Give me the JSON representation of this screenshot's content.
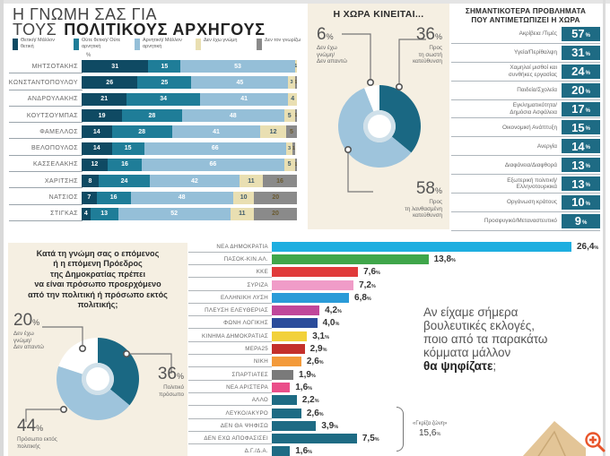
{
  "leaders_panel": {
    "title_line1": "Η ΓΝΩΜΗ ΣΑΣ ΓΙΑ",
    "title_line2_plain": "ΤΟΥΣ",
    "title_line2_bold": "ΠΟΛΙΤΙΚΟΥΣ ΑΡΧΗΓΟΥΣ",
    "percent_mark": "%",
    "legend": [
      {
        "label": "Θετική/ Μάλλον θετική",
        "color": "#0f4a63"
      },
      {
        "label": "Ούτε θετική/ Ούτε αρνητική",
        "color": "#1f7d98"
      },
      {
        "label": "Αρνητική/ Μάλλον αρνητική",
        "color": "#95bfd8"
      },
      {
        "label": "Δεν έχω γνώμη",
        "color": "#e9dfb2"
      },
      {
        "label": "Δεν τον γνωρίζω",
        "color": "#8a8a8a"
      }
    ]
  },
  "direction_panel": {
    "title": "Η ΧΩΡΑ ΚΙΝΕΙΤΑΙ...",
    "right": {
      "value": "36",
      "label_l1": "Προς",
      "label_l2": "τη σωστή",
      "label_l3": "κατεύθυνση"
    },
    "wrong": {
      "value": "58",
      "label_l1": "Προς",
      "label_l2": "τη λανθασμένη",
      "label_l3": "κατεύθυνση"
    },
    "dk": {
      "value": "6",
      "label_l1": "Δεν έχω",
      "label_l2": "γνώμη/",
      "label_l3": "Δεν απαντώ"
    },
    "percent_sign": "%"
  },
  "problems_panel": {
    "title_l1": "ΣΗΜΑΝΤΙΚΟΤΕΡΑ ΠΡΟΒΛΗΜΑΤΑ",
    "title_l2": "ΠΟΥ ΑΝΤΙΜΕΤΩΠΙΖΕΙ Η ΧΩΡΑ",
    "percent_sign": "%"
  },
  "president_panel": {
    "question_l1": "Κατά τη γνώμη σας ο επόμενος",
    "question_l2": "ή η επόμενη Πρόεδρος",
    "question_l3": "της Δημοκρατίας πρέπει",
    "question_l4": "να είναι πρόσωπο προερχόμενο",
    "question_l5": "από την πολιτική ή πρόσωπο εκτός",
    "question_l6": "πολιτικής;",
    "political": {
      "value": "36",
      "label_l1": "Πολιτικό",
      "label_l2": "πρόσωπο"
    },
    "outside": {
      "value": "44",
      "label_l1": "Πρόσωπο εκτός",
      "label_l2": "πολιτικής"
    },
    "dk": {
      "value": "20",
      "label_l1": "Δεν έχω",
      "label_l2": "γνώμη/",
      "label_l3": "Δεν απαντώ"
    },
    "percent_sign": "%"
  },
  "parties_panel": {
    "question_l1": "Αν είχαμε σήμερα",
    "question_l2": "βουλευτικές εκλογές,",
    "question_l3": "ποιο από τα παρακάτω",
    "question_l4": "κόμματα μάλλον",
    "question_bold": "θα ψηφίζατε",
    "question_end": ";",
    "grey_zone_label": "«Γκρίζα ζώνη»",
    "grey_zone_value": "15,6",
    "percent_sign": "%"
  },
  "chart_data": [
    {
      "type": "bar",
      "orientation": "horizontal",
      "stacked": true,
      "title": "Η ΓΝΩΜΗ ΣΑΣ ΓΙΑ ΤΟΥΣ ΠΟΛΙΤΙΚΟΥΣ ΑΡΧΗΓΟΥΣ",
      "unit": "%",
      "categories": [
        "ΜΗΤΣΟΤΑΚΗΣ",
        "ΚΩΝΣΤΑΝΤΟΠΟΥΛΟΥ",
        "ΑΝΔΡΟΥΛΑΚΗΣ",
        "ΚΟΥΤΣΟΥΜΠΑΣ",
        "ΦΑΜΕΛΛΟΣ",
        "ΒΕΛΟΠΟΥΛΟΣ",
        "ΚΑΣΣΕΛΑΚΗΣ",
        "ΧΑΡΙΤΣΗΣ",
        "ΝΑΤΣΙΟΣ",
        "ΣΤΙΓΚΑΣ"
      ],
      "series": [
        {
          "name": "Θετική/Μάλλον θετική",
          "color": "#0f4a63",
          "values": [
            31,
            26,
            21,
            19,
            14,
            14,
            12,
            8,
            7,
            4
          ]
        },
        {
          "name": "Ούτε θετική/Ούτε αρνητική",
          "color": "#1f7d98",
          "values": [
            15,
            25,
            34,
            28,
            28,
            15,
            16,
            24,
            16,
            13
          ]
        },
        {
          "name": "Αρνητική/Μάλλον αρνητική",
          "color": "#95bfd8",
          "values": [
            53,
            45,
            41,
            48,
            41,
            66,
            66,
            42,
            48,
            52
          ]
        },
        {
          "name": "Δεν έχω γνώμη",
          "color": "#e9dfb2",
          "values": [
            1,
            3,
            4,
            5,
            12,
            3,
            5,
            11,
            10,
            11
          ]
        },
        {
          "name": "Δεν τον γνωρίζω",
          "color": "#8a8a8a",
          "values": [
            0,
            1,
            0,
            1,
            5,
            1,
            1,
            16,
            20,
            20
          ]
        }
      ]
    },
    {
      "type": "pie",
      "donut": true,
      "title": "Η ΧΩΡΑ ΚΙΝΕΙΤΑΙ...",
      "categories": [
        "Προς τη σωστή κατεύθυνση",
        "Προς τη λανθασμένη κατεύθυνση",
        "Δεν έχω γνώμη/Δεν απαντώ"
      ],
      "values": [
        36,
        58,
        6
      ],
      "colors": [
        "#1a6883",
        "#9ec4dc",
        "#ffffff"
      ]
    },
    {
      "type": "table",
      "title": "ΣΗΜΑΝΤΙΚΟΤΕΡΑ ΠΡΟΒΛΗΜΑΤΑ ΠΟΥ ΑΝΤΙΜΕΤΩΠΙΖΕΙ Η ΧΩΡΑ",
      "unit": "%",
      "rows": [
        {
          "label_l1": "Ακρίβεια /Τιμές",
          "label_l2": "",
          "value": 57
        },
        {
          "label_l1": "Υγεία/Περίθαλψη",
          "label_l2": "",
          "value": 31
        },
        {
          "label_l1": "Χαμηλοί μισθοί και",
          "label_l2": "συνθήκες εργασίας",
          "value": 24
        },
        {
          "label_l1": "Παιδεία/Σχολεία",
          "label_l2": "",
          "value": 20
        },
        {
          "label_l1": "Εγκληματικότητα/",
          "label_l2": "Δημόσια Ασφάλεια",
          "value": 17
        },
        {
          "label_l1": "Οικονομική Ανάπτυξη",
          "label_l2": "",
          "value": 15
        },
        {
          "label_l1": "Ανεργία",
          "label_l2": "",
          "value": 14
        },
        {
          "label_l1": "Διαφάνεια/Διαφθορά",
          "label_l2": "",
          "value": 13
        },
        {
          "label_l1": "Εξωτερική πολιτική/",
          "label_l2": "Ελληνοτουρκικά",
          "value": 13
        },
        {
          "label_l1": "Οργάνωση κράτους",
          "label_l2": "",
          "value": 10
        },
        {
          "label_l1": "Προσφυγικό/Μεταναστευτικό",
          "label_l2": "",
          "value": 9
        }
      ]
    },
    {
      "type": "pie",
      "donut": true,
      "title": "Κατά τη γνώμη σας ο επόμενος ή η επόμενη Πρόεδρος της Δημοκρατίας πρέπει να είναι πρόσωπο προερχόμενο από την πολιτική ή πρόσωπο εκτός πολιτικής;",
      "categories": [
        "Πολιτικό πρόσωπο",
        "Πρόσωπο εκτός πολιτικής",
        "Δεν έχω γνώμη/Δεν απαντώ"
      ],
      "values": [
        36,
        44,
        20
      ],
      "colors": [
        "#1a6883",
        "#9ec4dc",
        "#ffffff"
      ]
    },
    {
      "type": "bar",
      "orientation": "horizontal",
      "title": "Αν είχαμε σήμερα βουλευτικές εκλογές, ποιο από τα παρακάτω κόμματα μάλλον θα ψηφίζατε;",
      "unit": "%",
      "categories": [
        "ΝΕΑ ΔΗΜΟΚΡΑΤΙΑ",
        "ΠΑΣΟΚ-ΚΙΝ.ΑΛ.",
        "ΚΚΕ",
        "ΣΥΡΙΖΑ",
        "ΕΛΛΗΝΙΚΗ ΛΥΣΗ",
        "ΠΛΕΥΣΗ ΕΛΕΥΘΕΡΙΑΣ",
        "ΦΩΝΗ ΛΟΓΙΚΗΣ",
        "ΚΙΝΗΜΑ ΔΗΜΟΚΡΑΤΙΑΣ",
        "ΜΕΡΑ25",
        "ΝΙΚΗ",
        "ΣΠΑΡΤΙΑΤΕΣ",
        "ΝΕΑ ΑΡΙΣΤΕΡΑ",
        "ΑΛΛΟ",
        "ΛΕΥΚΟ/ΑΚΥΡΟ",
        "ΔΕΝ ΘΑ ΨΗΦΙΣΩ",
        "ΔΕΝ ΕΧΩ ΑΠΟΦΑΣΙΣΕΙ",
        "Δ.Γ./Δ.Α."
      ],
      "values": [
        26.4,
        13.8,
        7.6,
        7.2,
        6.8,
        4.2,
        4.0,
        3.1,
        2.9,
        2.6,
        1.9,
        1.6,
        2.2,
        2.6,
        3.9,
        7.5,
        1.6
      ],
      "labels": [
        "26,4",
        "13,8",
        "7,6",
        "7,2",
        "6,8",
        "4,2",
        "4,0",
        "3,1",
        "2,9",
        "2,6",
        "1,9",
        "1,6",
        "2,2",
        "2,6",
        "3,9",
        "7,5",
        "1,6"
      ],
      "colors": [
        "#1eaee0",
        "#3fa64a",
        "#e03a3a",
        "#f09cc8",
        "#2a9bd8",
        "#c0479a",
        "#2b4c9b",
        "#f2d13a",
        "#c4302b",
        "#f39a3a",
        "#7a7a7a",
        "#ea4f8a",
        "#1e6b84",
        "#1e6b84",
        "#1e6b84",
        "#1e6b84",
        "#1e6b84"
      ],
      "annotations": [
        {
          "text": "«Γκρίζα ζώνη» 15,6%",
          "covers": [
            "ΛΕΥΚΟ/ΑΚΥΡΟ",
            "ΔΕΝ ΘΑ ΨΗΦΙΣΩ",
            "ΔΕΝ ΕΧΩ ΑΠΟΦΑΣΙΣΕΙ",
            "Δ.Γ./Δ.Α."
          ]
        }
      ]
    }
  ]
}
